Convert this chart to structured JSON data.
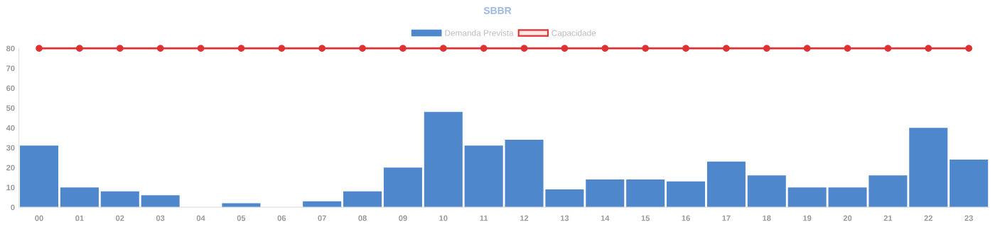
{
  "chart_data": {
    "type": "bar",
    "title": "SBBR",
    "categories": [
      "00",
      "01",
      "02",
      "03",
      "04",
      "05",
      "06",
      "07",
      "08",
      "09",
      "10",
      "11",
      "12",
      "13",
      "14",
      "15",
      "16",
      "17",
      "18",
      "19",
      "20",
      "21",
      "22",
      "23"
    ],
    "series": [
      {
        "name": "Demanda Prevista",
        "color": "#4e87cc",
        "values": [
          31,
          10,
          8,
          6,
          0,
          2,
          0,
          3,
          8,
          20,
          48,
          31,
          34,
          9,
          14,
          14,
          13,
          23,
          16,
          10,
          10,
          16,
          40,
          24
        ]
      },
      {
        "name": "Capacidade",
        "type": "line",
        "color": "#e03131",
        "marker": "circle",
        "values": [
          80,
          80,
          80,
          80,
          80,
          80,
          80,
          80,
          80,
          80,
          80,
          80,
          80,
          80,
          80,
          80,
          80,
          80,
          80,
          80,
          80,
          80,
          80,
          80
        ]
      }
    ],
    "ylim": [
      0,
      80
    ],
    "yticks": [
      0,
      10,
      20,
      30,
      40,
      50,
      60,
      70,
      80
    ],
    "grid": false,
    "legend": "top"
  }
}
